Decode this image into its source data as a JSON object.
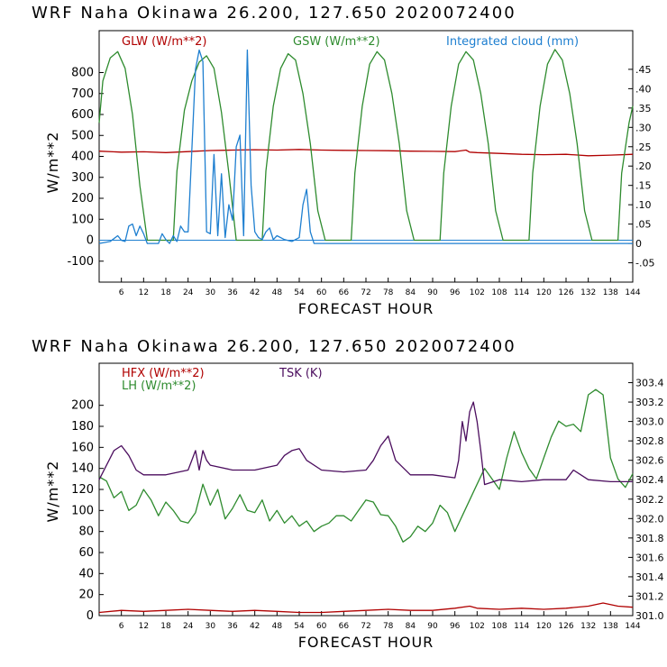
{
  "chart_data": [
    {
      "type": "line",
      "title": "WRF   Naha Okinawa  26.200, 127.650  2020072400",
      "xlabel": "FORECAST HOUR",
      "ylabel": "W/m**2",
      "xlim": [
        0,
        144
      ],
      "ylim": [
        -200,
        1000
      ],
      "y2lim": [
        -0.1,
        0.55
      ],
      "xticks": [
        6,
        12,
        18,
        24,
        30,
        36,
        42,
        48,
        54,
        60,
        66,
        72,
        78,
        84,
        90,
        96,
        102,
        108,
        114,
        120,
        126,
        132,
        138,
        144
      ],
      "yticks": [
        -100,
        0,
        100,
        200,
        300,
        400,
        500,
        600,
        700,
        800
      ],
      "y2ticks": [
        -0.05,
        0,
        0.05,
        0.1,
        0.15,
        0.2,
        0.25,
        0.3,
        0.35,
        0.4,
        0.45
      ],
      "y2tick_labels": [
        "-.05",
        "0",
        ".05",
        ".10",
        ".15",
        ".20",
        ".25",
        ".30",
        ".35",
        ".40",
        ".45"
      ],
      "series": [
        {
          "name": "GLW (W/m**2)",
          "axis": "left",
          "color": "#b00000",
          "x": [
            0,
            6,
            12,
            18,
            24,
            30,
            36,
            42,
            48,
            54,
            60,
            66,
            72,
            78,
            84,
            90,
            96,
            99,
            100,
            102,
            108,
            114,
            120,
            126,
            132,
            138,
            144
          ],
          "y": [
            425,
            420,
            422,
            418,
            423,
            428,
            430,
            432,
            430,
            433,
            430,
            429,
            428,
            427,
            425,
            424,
            423,
            430,
            420,
            418,
            414,
            410,
            408,
            410,
            403,
            406,
            410
          ]
        },
        {
          "name": "GSW (W/m**2)",
          "axis": "left",
          "color": "#2e8b2e",
          "x": [
            0,
            1,
            3,
            5,
            7,
            9,
            11,
            13,
            20,
            21,
            23,
            25,
            27,
            29,
            31,
            33,
            35,
            37,
            44,
            45,
            47,
            49,
            51,
            53,
            55,
            57,
            59,
            61,
            68,
            69,
            71,
            73,
            75,
            77,
            79,
            81,
            83,
            85,
            92,
            93,
            95,
            97,
            99,
            101,
            103,
            105,
            107,
            109,
            116,
            117,
            119,
            121,
            123,
            125,
            127,
            129,
            131,
            133,
            140,
            141,
            143,
            144
          ],
          "y": [
            560,
            760,
            870,
            900,
            820,
            600,
            260,
            0,
            0,
            330,
            620,
            760,
            850,
            880,
            820,
            610,
            320,
            0,
            0,
            330,
            640,
            820,
            890,
            860,
            700,
            460,
            140,
            0,
            0,
            320,
            640,
            840,
            900,
            860,
            700,
            460,
            140,
            0,
            0,
            320,
            640,
            840,
            900,
            860,
            700,
            460,
            140,
            0,
            0,
            320,
            640,
            840,
            910,
            860,
            700,
            460,
            140,
            0,
            0,
            320,
            560,
            640
          ]
        },
        {
          "name": "Integrated cloud (mm)",
          "axis": "right",
          "color": "#1e7fd0",
          "x": [
            0,
            3,
            5,
            6,
            7,
            8,
            9,
            10,
            11,
            12,
            13,
            16,
            17,
            18,
            19,
            20,
            21,
            22,
            23,
            24,
            25,
            26,
            27,
            28,
            29,
            30,
            31,
            32,
            33,
            34,
            35,
            36,
            37,
            38,
            39,
            40,
            41,
            42,
            43,
            44,
            45,
            46,
            47,
            48,
            50,
            52,
            54,
            55,
            56,
            57,
            58,
            144
          ],
          "y": [
            0,
            0.005,
            0.02,
            0.008,
            0.005,
            0.045,
            0.05,
            0.02,
            0.045,
            0.025,
            0,
            0,
            0.025,
            0.01,
            0,
            0.02,
            0.005,
            0.045,
            0.03,
            0.03,
            0.24,
            0.45,
            0.5,
            0.47,
            0.03,
            0.025,
            0.23,
            0.02,
            0.18,
            0.015,
            0.1,
            0.06,
            0.25,
            0.28,
            0.02,
            0.5,
            0.15,
            0.03,
            0.015,
            0.01,
            0.03,
            0.04,
            0.01,
            0.02,
            0.01,
            0.005,
            0.015,
            0.1,
            0.14,
            0.03,
            0,
            0
          ]
        }
      ],
      "legend": [
        "GLW (W/m**2)",
        "GSW (W/m**2)",
        "Integrated cloud (mm)"
      ]
    },
    {
      "type": "line",
      "title": "WRF   Naha Okinawa  26.200, 127.650  2020072400",
      "xlabel": "FORECAST HOUR",
      "ylabel": "W/m**2",
      "xlim": [
        0,
        144
      ],
      "ylim": [
        0,
        240
      ],
      "y2lim": [
        301.0,
        303.6
      ],
      "xticks": [
        6,
        12,
        18,
        24,
        30,
        36,
        42,
        48,
        54,
        60,
        66,
        72,
        78,
        84,
        90,
        96,
        102,
        108,
        114,
        120,
        126,
        132,
        138,
        144
      ],
      "yticks": [
        0,
        20,
        40,
        60,
        80,
        100,
        120,
        140,
        160,
        180,
        200
      ],
      "y2ticks": [
        301.0,
        301.2,
        301.4,
        301.6,
        301.8,
        302.0,
        302.2,
        302.4,
        302.6,
        302.8,
        303.0,
        303.2,
        303.4
      ],
      "y2tick_labels": [
        "301.0",
        "301.2",
        "301.4",
        "301.6",
        "301.8",
        "302.0",
        "302.2",
        "302.4",
        "302.6",
        "302.8",
        "303.0",
        "303.2",
        "303.4"
      ],
      "series": [
        {
          "name": "HFX (W/m**2)",
          "axis": "left",
          "color": "#b00000",
          "x": [
            0,
            6,
            12,
            18,
            24,
            30,
            36,
            42,
            48,
            54,
            60,
            66,
            72,
            78,
            84,
            90,
            96,
            100,
            102,
            108,
            114,
            120,
            126,
            132,
            136,
            140,
            144
          ],
          "y": [
            3,
            5,
            4,
            5,
            6,
            5,
            4,
            5,
            4,
            3,
            3,
            4,
            5,
            6,
            5,
            5,
            7,
            9,
            7,
            6,
            7,
            6,
            7,
            9,
            12,
            9,
            8
          ]
        },
        {
          "name": "LH (W/m**2)",
          "axis": "left",
          "color": "#2e8b2e",
          "x": [
            0,
            2,
            4,
            6,
            8,
            10,
            12,
            14,
            16,
            18,
            20,
            22,
            24,
            26,
            28,
            30,
            32,
            34,
            36,
            38,
            40,
            42,
            44,
            46,
            48,
            50,
            52,
            54,
            56,
            58,
            60,
            62,
            64,
            66,
            68,
            70,
            72,
            74,
            76,
            78,
            80,
            82,
            84,
            86,
            88,
            90,
            92,
            94,
            96,
            98,
            100,
            102,
            104,
            106,
            108,
            110,
            112,
            114,
            116,
            118,
            120,
            122,
            124,
            126,
            128,
            130,
            132,
            134,
            136,
            138,
            140,
            142,
            144
          ],
          "y": [
            132,
            128,
            112,
            118,
            100,
            105,
            120,
            110,
            95,
            108,
            100,
            90,
            88,
            98,
            125,
            105,
            120,
            92,
            102,
            115,
            100,
            98,
            110,
            90,
            100,
            88,
            95,
            85,
            90,
            80,
            85,
            88,
            95,
            95,
            90,
            100,
            110,
            108,
            96,
            95,
            85,
            70,
            75,
            85,
            80,
            88,
            105,
            98,
            80,
            95,
            110,
            125,
            140,
            130,
            120,
            150,
            175,
            155,
            140,
            130,
            150,
            170,
            185,
            180,
            182,
            175,
            210,
            215,
            210,
            150,
            130,
            122,
            135
          ]
        },
        {
          "name": "TSK (K)",
          "axis": "right",
          "color": "#4b0d5e",
          "x": [
            0,
            2,
            4,
            6,
            8,
            10,
            12,
            18,
            24,
            26,
            27,
            28,
            29,
            30,
            36,
            42,
            48,
            50,
            52,
            54,
            56,
            60,
            66,
            72,
            74,
            76,
            78,
            80,
            84,
            90,
            96,
            97,
            98,
            99,
            100,
            101,
            102,
            103,
            104,
            108,
            114,
            120,
            126,
            128,
            130,
            132,
            138,
            144
          ],
          "y": [
            302.4,
            302.55,
            302.7,
            302.75,
            302.65,
            302.5,
            302.45,
            302.45,
            302.5,
            302.7,
            302.5,
            302.7,
            302.6,
            302.55,
            302.5,
            302.5,
            302.55,
            302.65,
            302.7,
            302.72,
            302.6,
            302.5,
            302.48,
            302.5,
            302.6,
            302.75,
            302.85,
            302.6,
            302.45,
            302.45,
            302.42,
            302.6,
            303.0,
            302.8,
            303.1,
            303.2,
            303.0,
            302.7,
            302.35,
            302.4,
            302.38,
            302.4,
            302.4,
            302.5,
            302.45,
            302.4,
            302.38,
            302.38
          ]
        }
      ],
      "legend": [
        "HFX (W/m**2)",
        "LH (W/m**2)",
        "TSK (K)"
      ]
    }
  ]
}
